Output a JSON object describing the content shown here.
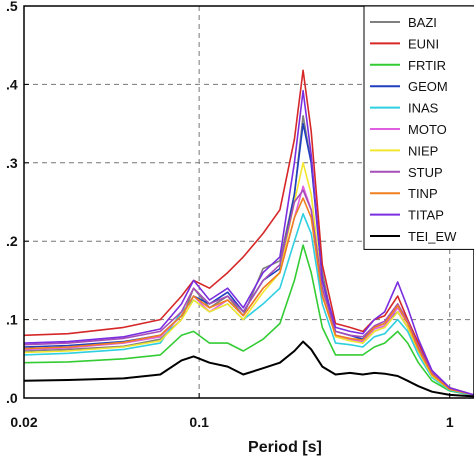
{
  "chart_data": {
    "type": "line",
    "title": "",
    "xlabel": "Period [s]",
    "ylabel": "",
    "x_scale": "log",
    "xlim": [
      0.02,
      1.25
    ],
    "ylim": [
      0,
      0.5
    ],
    "x_ticks": [
      {
        "value": 0.02,
        "label": "0.02"
      },
      {
        "value": 0.1,
        "label": "0.1"
      },
      {
        "value": 1,
        "label": "1"
      }
    ],
    "y_ticks": [
      {
        "value": 0.0,
        "label": ".0"
      },
      {
        "value": 0.1,
        "label": ".1"
      },
      {
        "value": 0.2,
        "label": ".2"
      },
      {
        "value": 0.3,
        "label": ".3"
      },
      {
        "value": 0.4,
        "label": ".4"
      },
      {
        "value": 0.5,
        "label": ".5"
      }
    ],
    "grid": true,
    "legend_position": "top-right",
    "x": [
      0.02,
      0.03,
      0.05,
      0.07,
      0.085,
      0.095,
      0.11,
      0.13,
      0.15,
      0.18,
      0.21,
      0.24,
      0.26,
      0.28,
      0.31,
      0.35,
      0.4,
      0.45,
      0.5,
      0.55,
      0.62,
      0.68,
      0.75,
      0.85,
      1.0,
      1.25
    ],
    "series": [
      {
        "name": "BAZI",
        "color": "#7f7f7f",
        "values": [
          0.06,
          0.062,
          0.066,
          0.075,
          0.1,
          0.14,
          0.115,
          0.13,
          0.105,
          0.165,
          0.175,
          0.26,
          0.36,
          0.3,
          0.16,
          0.08,
          0.075,
          0.07,
          0.085,
          0.09,
          0.11,
          0.09,
          0.06,
          0.03,
          0.012,
          0.004
        ]
      },
      {
        "name": "EUNI",
        "color": "#d62728",
        "values": [
          0.08,
          0.082,
          0.09,
          0.1,
          0.13,
          0.15,
          0.14,
          0.16,
          0.18,
          0.21,
          0.24,
          0.33,
          0.418,
          0.34,
          0.17,
          0.095,
          0.09,
          0.085,
          0.1,
          0.105,
          0.13,
          0.1,
          0.07,
          0.035,
          0.013,
          0.004
        ]
      },
      {
        "name": "FRTIR",
        "color": "#33cc33",
        "values": [
          0.045,
          0.046,
          0.05,
          0.055,
          0.08,
          0.085,
          0.07,
          0.07,
          0.06,
          0.075,
          0.095,
          0.15,
          0.195,
          0.16,
          0.09,
          0.055,
          0.055,
          0.055,
          0.065,
          0.07,
          0.085,
          0.07,
          0.045,
          0.022,
          0.009,
          0.003
        ]
      },
      {
        "name": "GEOM",
        "color": "#1f3fbf",
        "values": [
          0.065,
          0.067,
          0.072,
          0.08,
          0.105,
          0.13,
          0.12,
          0.135,
          0.11,
          0.15,
          0.165,
          0.26,
          0.35,
          0.3,
          0.15,
          0.085,
          0.08,
          0.075,
          0.09,
          0.095,
          0.11,
          0.09,
          0.06,
          0.03,
          0.012,
          0.004
        ]
      },
      {
        "name": "INAS",
        "color": "#2ecfe0",
        "values": [
          0.055,
          0.057,
          0.062,
          0.07,
          0.11,
          0.125,
          0.11,
          0.12,
          0.1,
          0.12,
          0.14,
          0.2,
          0.235,
          0.21,
          0.12,
          0.07,
          0.068,
          0.065,
          0.078,
          0.082,
          0.1,
          0.085,
          0.055,
          0.026,
          0.01,
          0.003
        ]
      },
      {
        "name": "MOTO",
        "color": "#e05fe0",
        "values": [
          0.062,
          0.064,
          0.07,
          0.078,
          0.105,
          0.13,
          0.11,
          0.125,
          0.105,
          0.14,
          0.16,
          0.23,
          0.27,
          0.24,
          0.135,
          0.08,
          0.075,
          0.072,
          0.088,
          0.092,
          0.115,
          0.095,
          0.062,
          0.03,
          0.011,
          0.004
        ]
      },
      {
        "name": "NIEP",
        "color": "#f2e62e",
        "values": [
          0.058,
          0.06,
          0.065,
          0.073,
          0.1,
          0.125,
          0.11,
          0.12,
          0.1,
          0.135,
          0.16,
          0.25,
          0.3,
          0.26,
          0.14,
          0.078,
          0.073,
          0.07,
          0.085,
          0.09,
          0.11,
          0.09,
          0.06,
          0.028,
          0.011,
          0.004
        ]
      },
      {
        "name": "STUP",
        "color": "#a64db8",
        "values": [
          0.068,
          0.07,
          0.076,
          0.085,
          0.11,
          0.14,
          0.12,
          0.13,
          0.11,
          0.15,
          0.17,
          0.25,
          0.265,
          0.24,
          0.14,
          0.085,
          0.08,
          0.078,
          0.092,
          0.098,
          0.12,
          0.098,
          0.065,
          0.032,
          0.012,
          0.004
        ]
      },
      {
        "name": "TINP",
        "color": "#f07f1f",
        "values": [
          0.063,
          0.065,
          0.071,
          0.08,
          0.105,
          0.13,
          0.115,
          0.125,
          0.105,
          0.14,
          0.16,
          0.23,
          0.255,
          0.23,
          0.13,
          0.08,
          0.076,
          0.074,
          0.09,
          0.095,
          0.118,
          0.095,
          0.062,
          0.03,
          0.011,
          0.004
        ]
      },
      {
        "name": "TITAP",
        "color": "#7a2ee0",
        "values": [
          0.07,
          0.072,
          0.078,
          0.088,
          0.12,
          0.15,
          0.125,
          0.14,
          0.115,
          0.16,
          0.18,
          0.3,
          0.392,
          0.31,
          0.15,
          0.09,
          0.085,
          0.082,
          0.1,
          0.11,
          0.148,
          0.115,
          0.075,
          0.035,
          0.013,
          0.004
        ]
      },
      {
        "name": "TEI_EW",
        "color": "#000000",
        "values": [
          0.022,
          0.023,
          0.025,
          0.03,
          0.048,
          0.053,
          0.045,
          0.04,
          0.03,
          0.038,
          0.045,
          0.06,
          0.072,
          0.062,
          0.04,
          0.03,
          0.032,
          0.03,
          0.032,
          0.031,
          0.028,
          0.022,
          0.015,
          0.008,
          0.004,
          0.002
        ]
      }
    ]
  }
}
